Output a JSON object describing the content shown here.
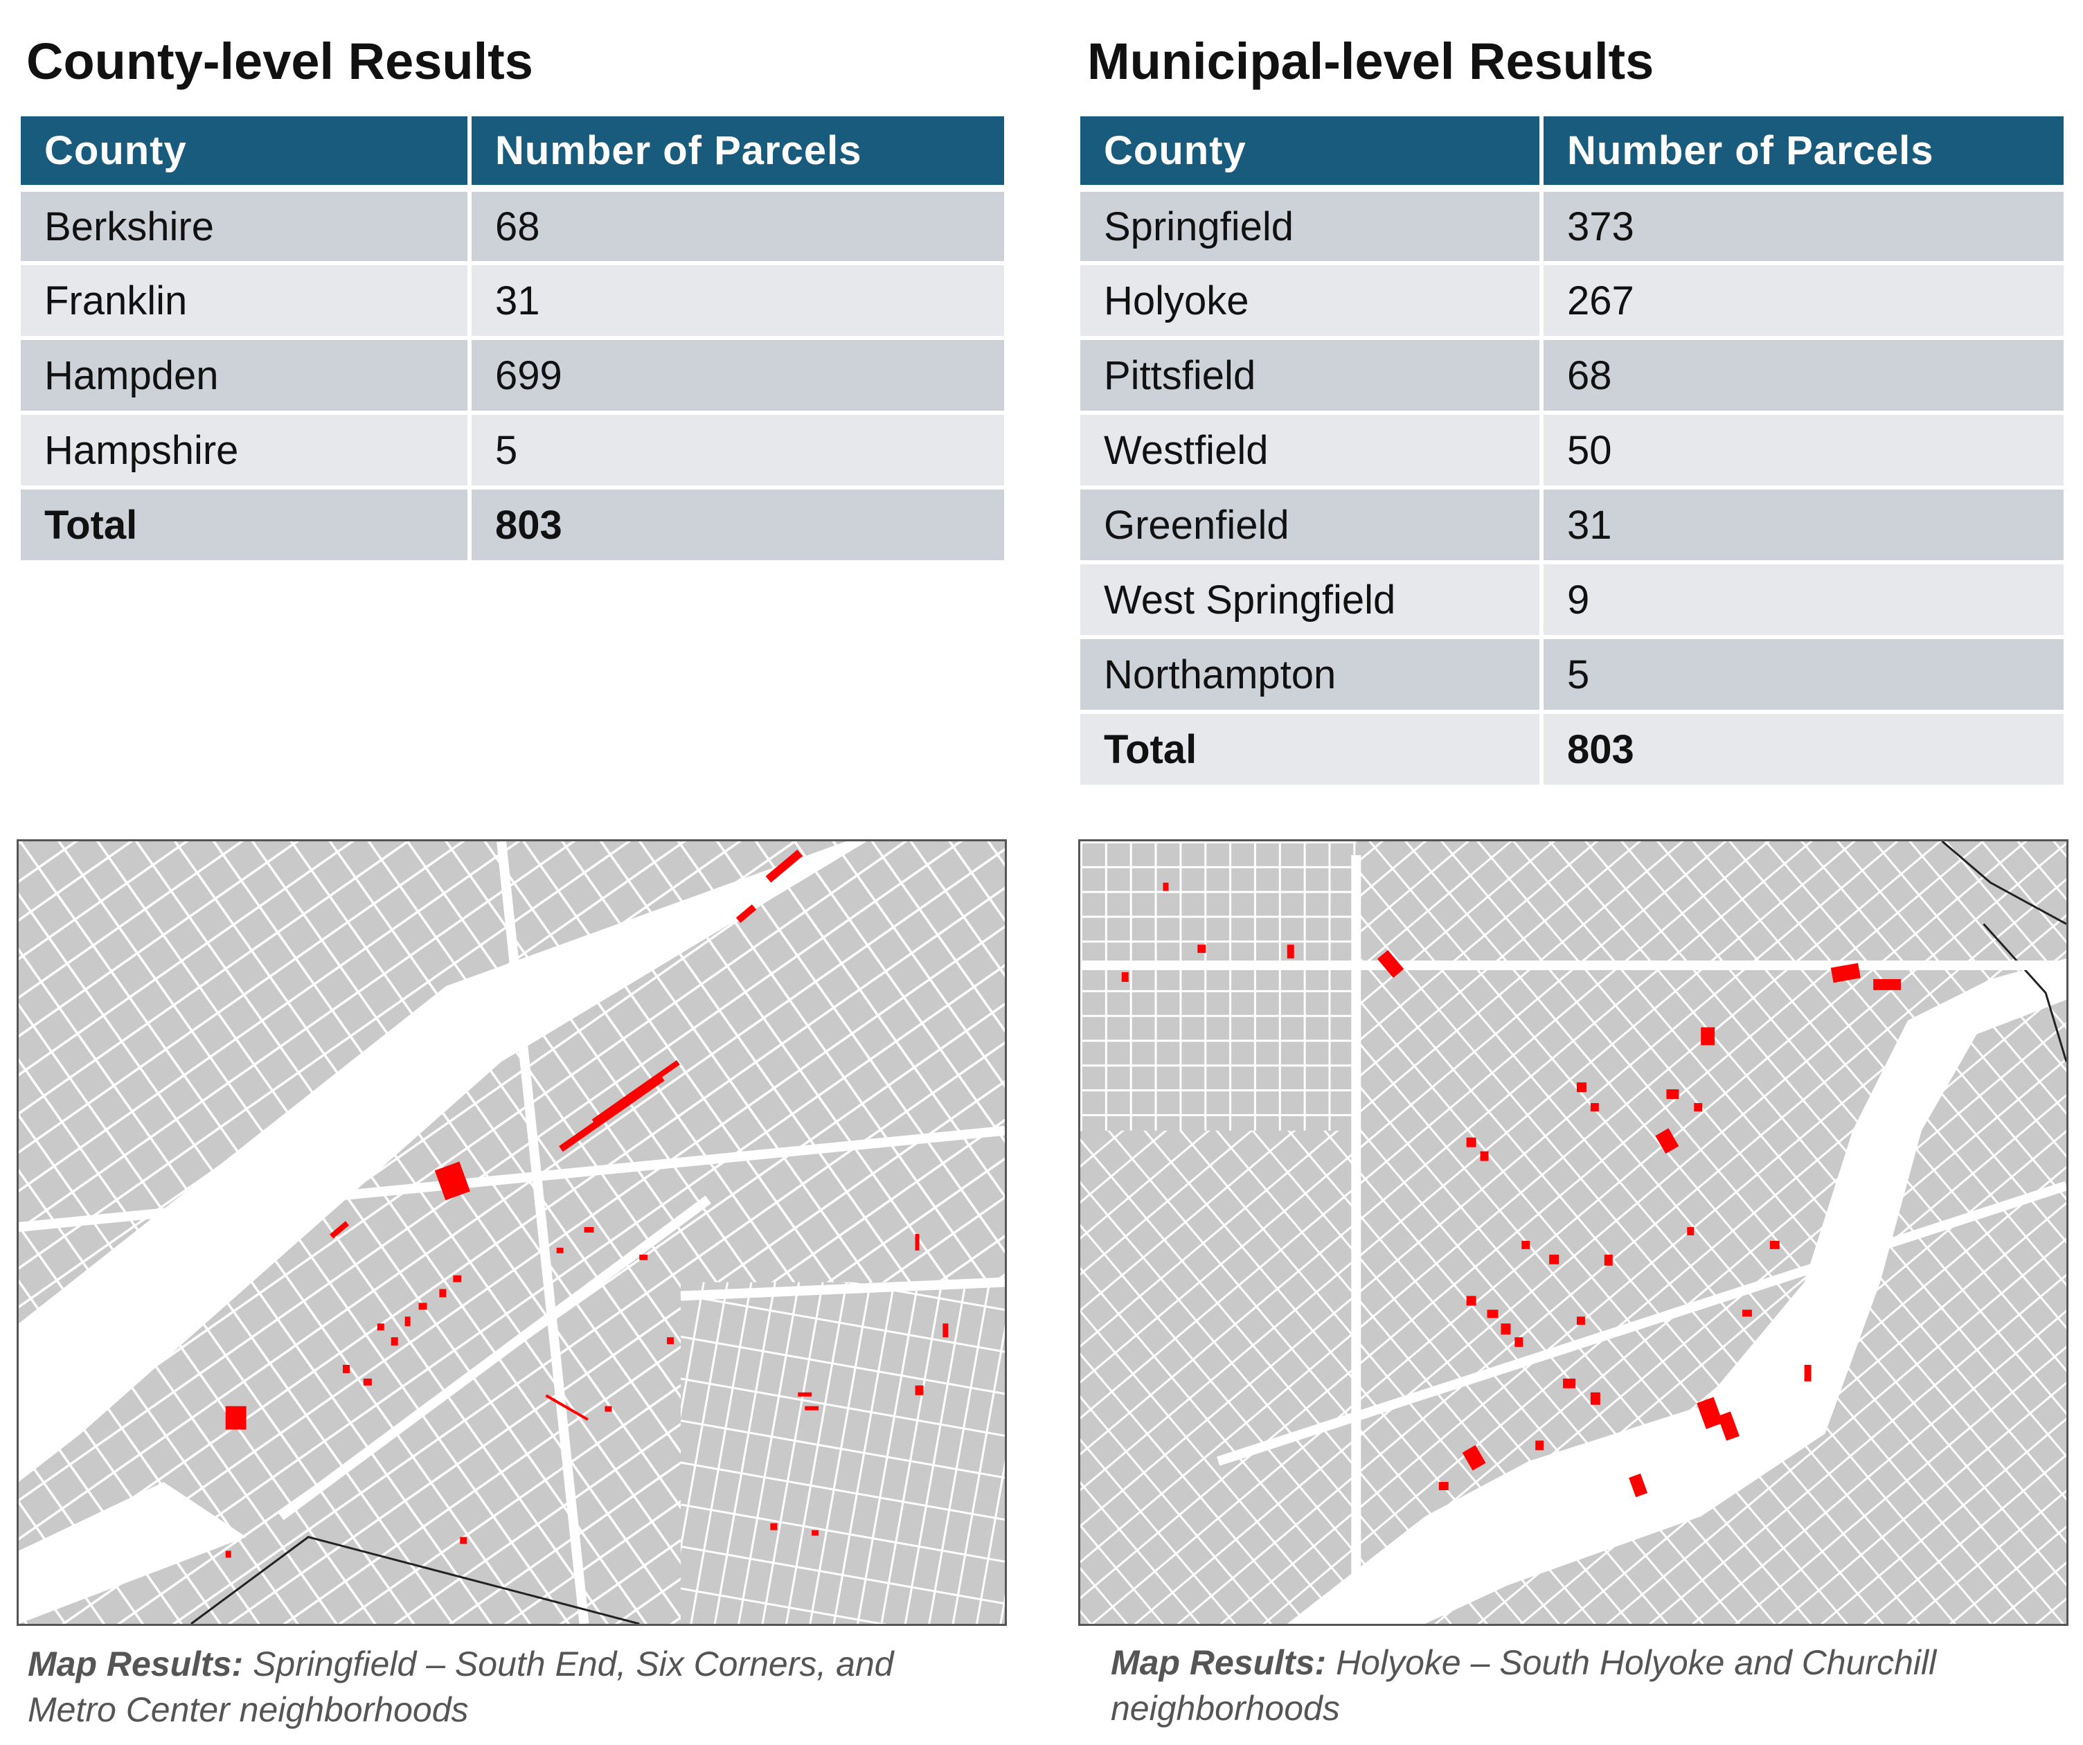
{
  "county_section": {
    "title": "County-level Results",
    "headers": [
      "County",
      "Number of Parcels"
    ],
    "rows": [
      {
        "name": "Berkshire",
        "count": "68"
      },
      {
        "name": "Franklin",
        "count": "31"
      },
      {
        "name": "Hampden",
        "count": "699"
      },
      {
        "name": "Hampshire",
        "count": "5"
      }
    ],
    "total": {
      "name": "Total",
      "count": "803"
    }
  },
  "municipal_section": {
    "title": "Municipal-level Results",
    "headers": [
      "County",
      "Number of Parcels"
    ],
    "rows": [
      {
        "name": "Springfield",
        "count": "373"
      },
      {
        "name": "Holyoke",
        "count": "267"
      },
      {
        "name": "Pittsfield",
        "count": "68"
      },
      {
        "name": "Westfield",
        "count": "50"
      },
      {
        "name": "Greenfield",
        "count": "31"
      },
      {
        "name": "West Springfield",
        "count": "9"
      },
      {
        "name": "Northampton",
        "count": "5"
      }
    ],
    "total": {
      "name": "Total",
      "count": "803"
    }
  },
  "maps": {
    "left_caption": {
      "label": "Map Results:",
      "text_line1": " Springfield – South End, Six Corners, and",
      "text_line2": "Metro Center neighborhoods"
    },
    "right_caption": {
      "label": "Map Results:",
      "text_line1": " Holyoke – South Holyoke and Churchill",
      "text_line2": "neighborhoods"
    }
  },
  "colors": {
    "header_bg": "#185b7c",
    "row_dark": "#cdd1d8",
    "row_light": "#e6e8ec",
    "parcel_land": "#c9c9c9",
    "highlight_parcel": "#ff0000"
  }
}
